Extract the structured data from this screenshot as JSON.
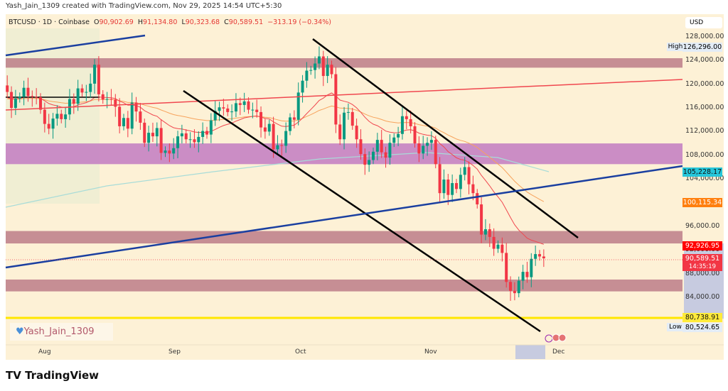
{
  "credit": "Yash_Jain_1309 created with TradingView.com, Nov 29, 2025 14:54 UTC+5:30",
  "legend": {
    "symbol": "BTCUSD · 1D · Coinbase",
    "o_label": "O",
    "o": "90,902.69",
    "h_label": "H",
    "h": "91,134.80",
    "l_label": "L",
    "l": "90,323.68",
    "c_label": "C",
    "c": "90,589.51",
    "change": "−313.19 (−0.34%)"
  },
  "currency": "USD",
  "price_ticks": [
    "128,000.00",
    "124,000.00",
    "120,000.00",
    "116,000.00",
    "112,000.00",
    "108,000.00",
    "104,000.00",
    "96,000.00",
    "92,000.00",
    "88,000.00",
    "84,000.00"
  ],
  "labels": {
    "high_label": "High",
    "high": "126,296.00",
    "blue_line": "105,228.17",
    "orange_ma": "100,115.34",
    "red_ma": "92,926.95",
    "last_price": "90,589.51",
    "countdown": "14:35:19",
    "yellow_line": "80,738.91",
    "low_label": "Low",
    "low": "80,524.65"
  },
  "colors": {
    "bg": "#fdf1d6",
    "up": "#089981",
    "down": "#f23645",
    "blue": "#1a3fa0",
    "red_line": "#f0474f",
    "zone": "#b87583",
    "purple_zone": "#c27bc2",
    "yellow": "#ffe600",
    "teal": "#a8dcd8",
    "orange": "#f7a35c"
  },
  "time_ticks": [
    "Aug",
    "Sep",
    "Oct",
    "Nov",
    "Dec"
  ],
  "watermark": "Yash_Jain_1309",
  "brand": "TradingView",
  "chart_data": {
    "type": "candlestick",
    "symbol": "BTCUSD",
    "interval": "1D",
    "exchange": "Coinbase",
    "ylim": [
      78000,
      130000
    ],
    "start_date": "2025-07-21",
    "end_date": "2025-11-29",
    "closes": [
      117.4,
      119.8,
      118.7,
      116,
      117.6,
      117.9,
      119.4,
      118,
      117.9,
      117.8,
      115.7,
      113.3,
      112.5,
      114.2,
      115,
      114.1,
      114.9,
      117.5,
      116.7,
      119.3,
      118.6,
      118.7,
      120.1,
      123.3,
      118.3,
      117.4,
      117.5,
      117.4,
      116.2,
      112.9,
      114.3,
      112.5,
      116.9,
      115.4,
      113.5,
      110.1,
      111.8,
      111.2,
      112.6,
      108.4,
      108.8,
      108.3,
      109.2,
      111.2,
      111.7,
      110.7,
      110.7,
      110.2,
      111.1,
      112.1,
      111.5,
      113.9,
      115.5,
      116.1,
      115.9,
      115.3,
      115.4,
      116.8,
      116.5,
      117.1,
      115.7,
      115.7,
      115.3,
      112.7,
      112.0,
      113.3,
      109.0,
      109.7,
      109.6,
      112.1,
      114.4,
      114.0,
      118.6,
      120.6,
      122.3,
      122.4,
      123.5,
      124.7,
      121.4,
      123.3,
      121.7,
      113.2,
      110.7,
      115.2,
      115.3,
      113.0,
      110.7,
      108.2,
      106.4,
      107.2,
      108.6,
      110.6,
      108.5,
      107.6,
      110.1,
      111.0,
      111.6,
      114.6,
      114.1,
      112.9,
      110.0,
      108.3,
      109.6,
      110.1,
      110.6,
      106.5,
      101.6,
      103.9,
      101.3,
      103.3,
      102.3,
      104.7,
      106.0,
      103.1,
      101.6,
      99.7,
      94.6,
      95.5,
      94.2,
      92.2,
      92.9,
      91.5,
      86.6,
      85.1,
      84.7,
      86.8,
      88.3,
      87.4,
      90.5,
      91.3,
      90.9,
      90.589
    ],
    "close_unit": "thousand USD",
    "zones": [
      [
        122800,
        124400
      ],
      [
        106500,
        110000
      ],
      [
        93100,
        95200
      ],
      [
        85000,
        87000
      ]
    ],
    "horizontal_line": 80738.91
  }
}
